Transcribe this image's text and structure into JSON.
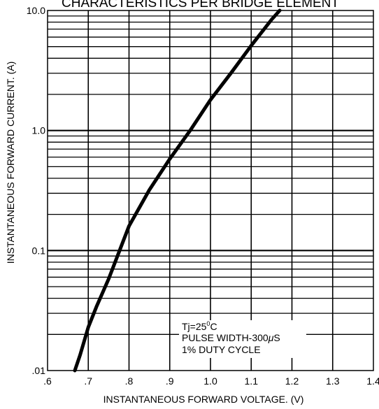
{
  "chart_data": {
    "type": "line",
    "title": "CHARACTERISTICS PER BRIDGE ELEMENT",
    "xlabel": "INSTANTANEOUS FORWARD VOLTAGE. (V)",
    "ylabel": "INSTANTANEOUS FORWARD CURRENT. (A)",
    "x_scale": "linear",
    "y_scale": "log",
    "xlim": [
      0.6,
      1.4
    ],
    "ylim": [
      0.01,
      10.0
    ],
    "x_ticks": [
      ".6",
      ".7",
      ".8",
      ".9",
      "1.0",
      "1.1",
      "1.2",
      "1.3",
      "1.4"
    ],
    "y_ticks": [
      ".01",
      "0.1",
      "1.0",
      "10.0"
    ],
    "grid": true,
    "series": [
      {
        "color": "#000000",
        "x": [
          0.667,
          0.68,
          0.7,
          0.72,
          0.75,
          0.8,
          0.85,
          0.9,
          0.95,
          1.0,
          1.05,
          1.1,
          1.15,
          1.17
        ],
        "y": [
          0.01,
          0.0135,
          0.023,
          0.034,
          0.058,
          0.16,
          0.32,
          0.58,
          1.0,
          1.8,
          3.0,
          5.1,
          8.4,
          10.0
        ]
      }
    ],
    "annotations": {
      "line1_prefix": "Tj=25",
      "line1_sup": "0",
      "line1_suffix": "C",
      "line2_prefix": "PULSE WIDTH-300",
      "line2_mu": "μ",
      "line2_suffix": "S",
      "line3": "1% DUTY CYCLE"
    }
  }
}
